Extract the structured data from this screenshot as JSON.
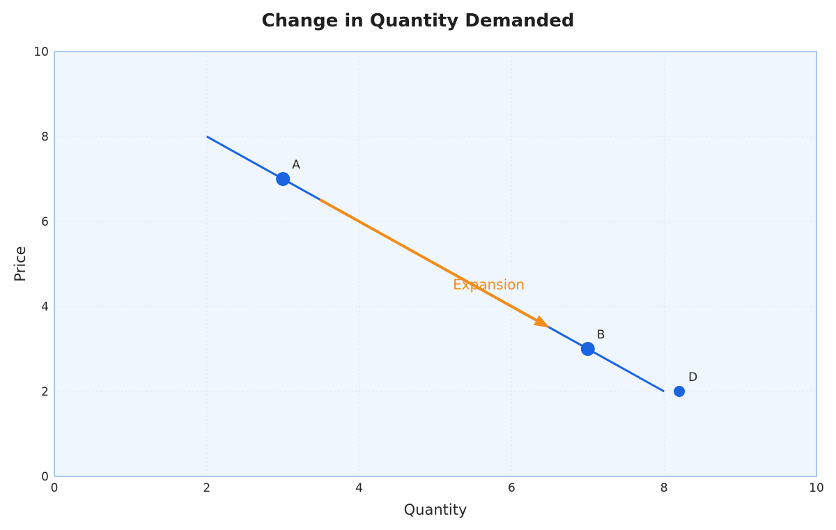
{
  "chart_data": {
    "type": "line",
    "title": "Change in Quantity Demanded",
    "xlabel": "Quantity",
    "ylabel": "Price",
    "xlim": [
      0,
      10
    ],
    "ylim": [
      0,
      10
    ],
    "xticks": [
      0,
      2,
      4,
      6,
      8,
      10
    ],
    "yticks": [
      0,
      2,
      4,
      6,
      8,
      10
    ],
    "grid": true,
    "series": [
      {
        "x": [
          2,
          8
        ],
        "y": [
          8,
          2
        ]
      }
    ],
    "points": [
      {
        "label": "A",
        "x": 3,
        "y": 7,
        "size": "large"
      },
      {
        "label": "B",
        "x": 7,
        "y": 3,
        "size": "large"
      },
      {
        "label": "D",
        "x": 8.2,
        "y": 2,
        "size": "small"
      }
    ],
    "annotations": [
      {
        "text": "Expansion",
        "x": 5.7,
        "y": 4.4,
        "arrow_from": [
          3.5,
          6.5
        ],
        "arrow_to": [
          6.5,
          3.5
        ]
      }
    ],
    "colors": {
      "line": "#1a64e3",
      "point": "#1a64e3",
      "arrow": "#f28c1a",
      "plot_background": "#f0f6fd",
      "plot_border": "#a9c8f5",
      "grid": "#dfe6f0"
    }
  }
}
